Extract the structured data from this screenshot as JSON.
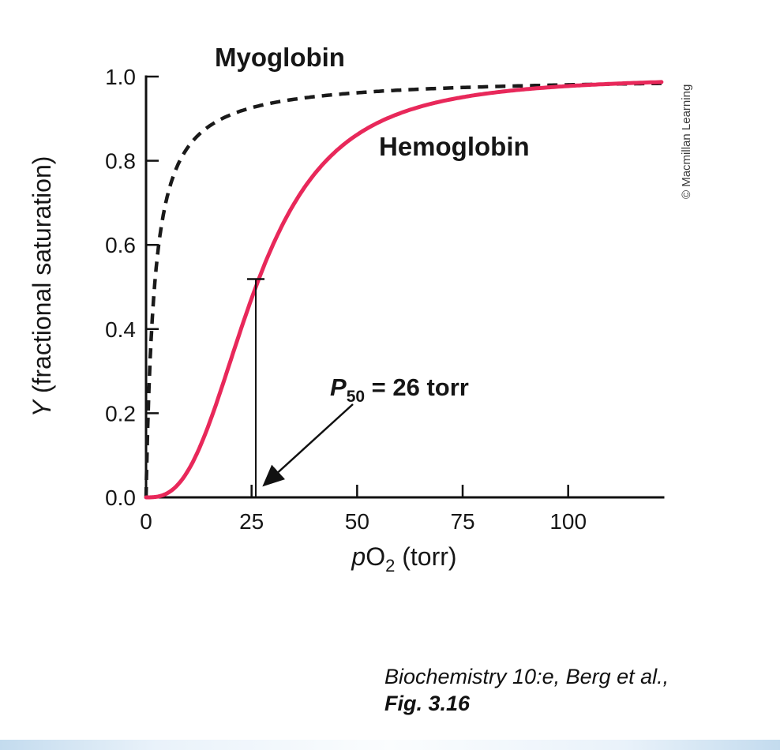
{
  "chart_data": {
    "type": "line",
    "title": "",
    "xlabel": "pO2 (torr)",
    "ylabel": "Y (fractional saturation)",
    "xlim": [
      0,
      122.5
    ],
    "ylim": [
      0,
      1.0
    ],
    "grid": false,
    "x_ticks": [
      0,
      25,
      50,
      75,
      100
    ],
    "x_tick_labels": [
      "0",
      "25",
      "50",
      "75",
      "100"
    ],
    "y_ticks": [
      0.0,
      0.2,
      0.4,
      0.6,
      0.8,
      1.0
    ],
    "y_tick_labels": [
      "0.0",
      "0.2",
      "0.4",
      "0.6",
      "0.8",
      "1.0"
    ],
    "series": [
      {
        "name": "Myoglobin",
        "style": "dashed",
        "color": "#1a1a1a",
        "model": "hyperbolic",
        "p50": 2,
        "points": {
          "x": [
            0,
            1,
            2,
            3,
            5,
            7,
            10,
            15,
            20,
            26,
            30,
            40,
            50,
            60,
            75,
            90,
            100,
            120
          ],
          "y": [
            0,
            0.333,
            0.5,
            0.6,
            0.714,
            0.778,
            0.833,
            0.882,
            0.909,
            0.929,
            0.938,
            0.952,
            0.962,
            0.968,
            0.974,
            0.978,
            0.98,
            0.984
          ]
        }
      },
      {
        "name": "Hemoglobin",
        "style": "solid",
        "color": "#e8285a",
        "model": "hill",
        "p50": 26,
        "hill_n": 2.8,
        "points": {
          "x": [
            0,
            1,
            2,
            3,
            5,
            7,
            10,
            15,
            20,
            26,
            30,
            40,
            50,
            60,
            75,
            90,
            100,
            120
          ],
          "y": [
            0,
            0.0001,
            0.0008,
            0.0024,
            0.0098,
            0.0248,
            0.064,
            0.176,
            0.324,
            0.5,
            0.599,
            0.77,
            0.862,
            0.912,
            0.951,
            0.97,
            0.978,
            0.986
          ]
        }
      }
    ],
    "annotation": {
      "text": "P50 = 26 torr",
      "p50_value": 26,
      "y_at_p50": 0.5
    },
    "legend_position": "inline-labels"
  },
  "labels": {
    "myoglobin": "Myoglobin",
    "hemoglobin": "Hemoglobin"
  },
  "axes": {
    "y_label_italic": "Y",
    "y_label_rest": " (fractional saturation)",
    "x_label_p": "p",
    "x_label_o": "O",
    "x_label_sub": "2",
    "x_label_rest": " (torr)"
  },
  "annotation": {
    "p": "P",
    "sub": "50",
    "rest": " = 26 torr"
  },
  "credit": "© Macmillan Learning",
  "caption": {
    "line1": "Biochemistry 10:e, Berg et al.,",
    "line2": "Fig. 3.16"
  }
}
